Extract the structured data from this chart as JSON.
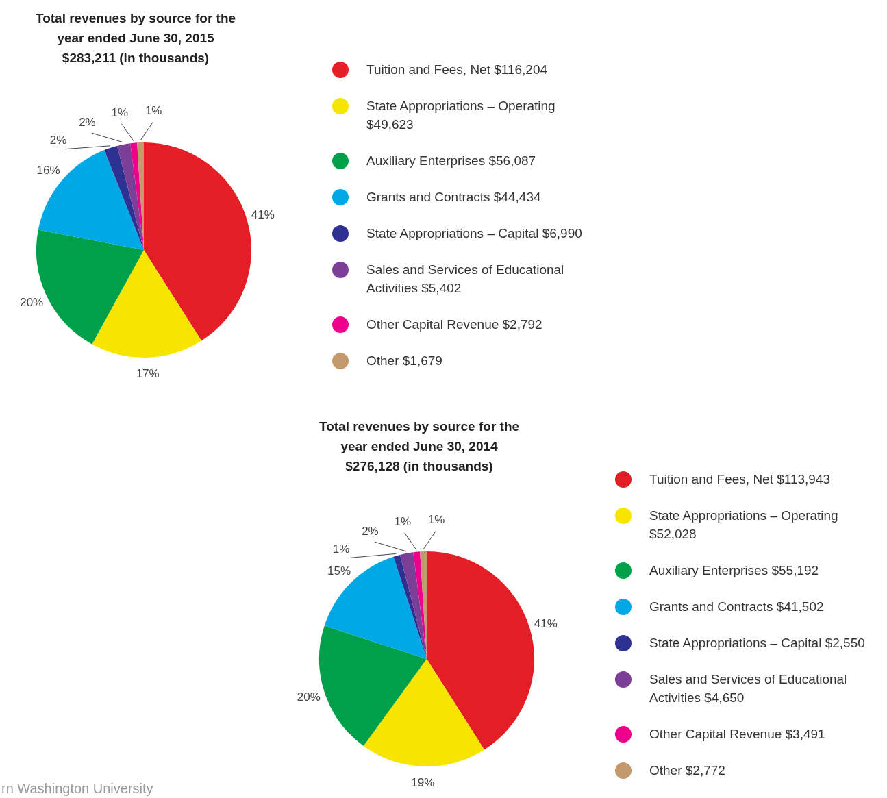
{
  "chart_data": [
    {
      "type": "pie",
      "title": "Total revenues by source for the year ended June 30, 2015 $283,211 (in thousands)",
      "categories": [
        "Tuition and Fees, Net $116,204",
        "State Appropriations – Operating $49,623",
        "Auxiliary Enterprises $56,087",
        "Grants and Contracts $44,434",
        "State Appropriations – Capital $6,990",
        "Sales and Services of Educational Activities $5,402",
        "Other Capital Revenue $2,792",
        "Other $1,679"
      ],
      "values": [
        41,
        17,
        20,
        16,
        2,
        2,
        1,
        1
      ],
      "value_labels": [
        "41%",
        "17%",
        "20%",
        "16%",
        "2%",
        "2%",
        "1%",
        "1%"
      ],
      "colors": [
        "#e41e26",
        "#f5e500",
        "#00a04b",
        "#00a8e6",
        "#2e3192",
        "#7b3f98",
        "#ec008c",
        "#c49a6c"
      ],
      "legend": "right",
      "annotations": [
        "rn Washington University"
      ]
    },
    {
      "type": "pie",
      "title": "Total revenues by source for the year ended June 30, 2014 $276,128 (in thousands)",
      "categories": [
        "Tuition and Fees, Net $113,943",
        "State Appropriations – Operating $52,028",
        "Auxiliary Enterprises $55,192",
        "Grants and Contracts $41,502",
        "State Appropriations – Capital $2,550",
        "Sales and Services of Educational Activities $4,650",
        "Other Capital Revenue $3,491",
        "Other $2,772"
      ],
      "values": [
        41,
        19,
        20,
        15,
        1,
        2,
        1,
        1
      ],
      "value_labels": [
        "41%",
        "19%",
        "20%",
        "15%",
        "1%",
        "2%",
        "1%",
        "1%"
      ],
      "colors": [
        "#e41e26",
        "#f5e500",
        "#00a04b",
        "#00a8e6",
        "#2e3192",
        "#7b3f98",
        "#ec008c",
        "#c49a6c"
      ],
      "legend": "right"
    }
  ]
}
